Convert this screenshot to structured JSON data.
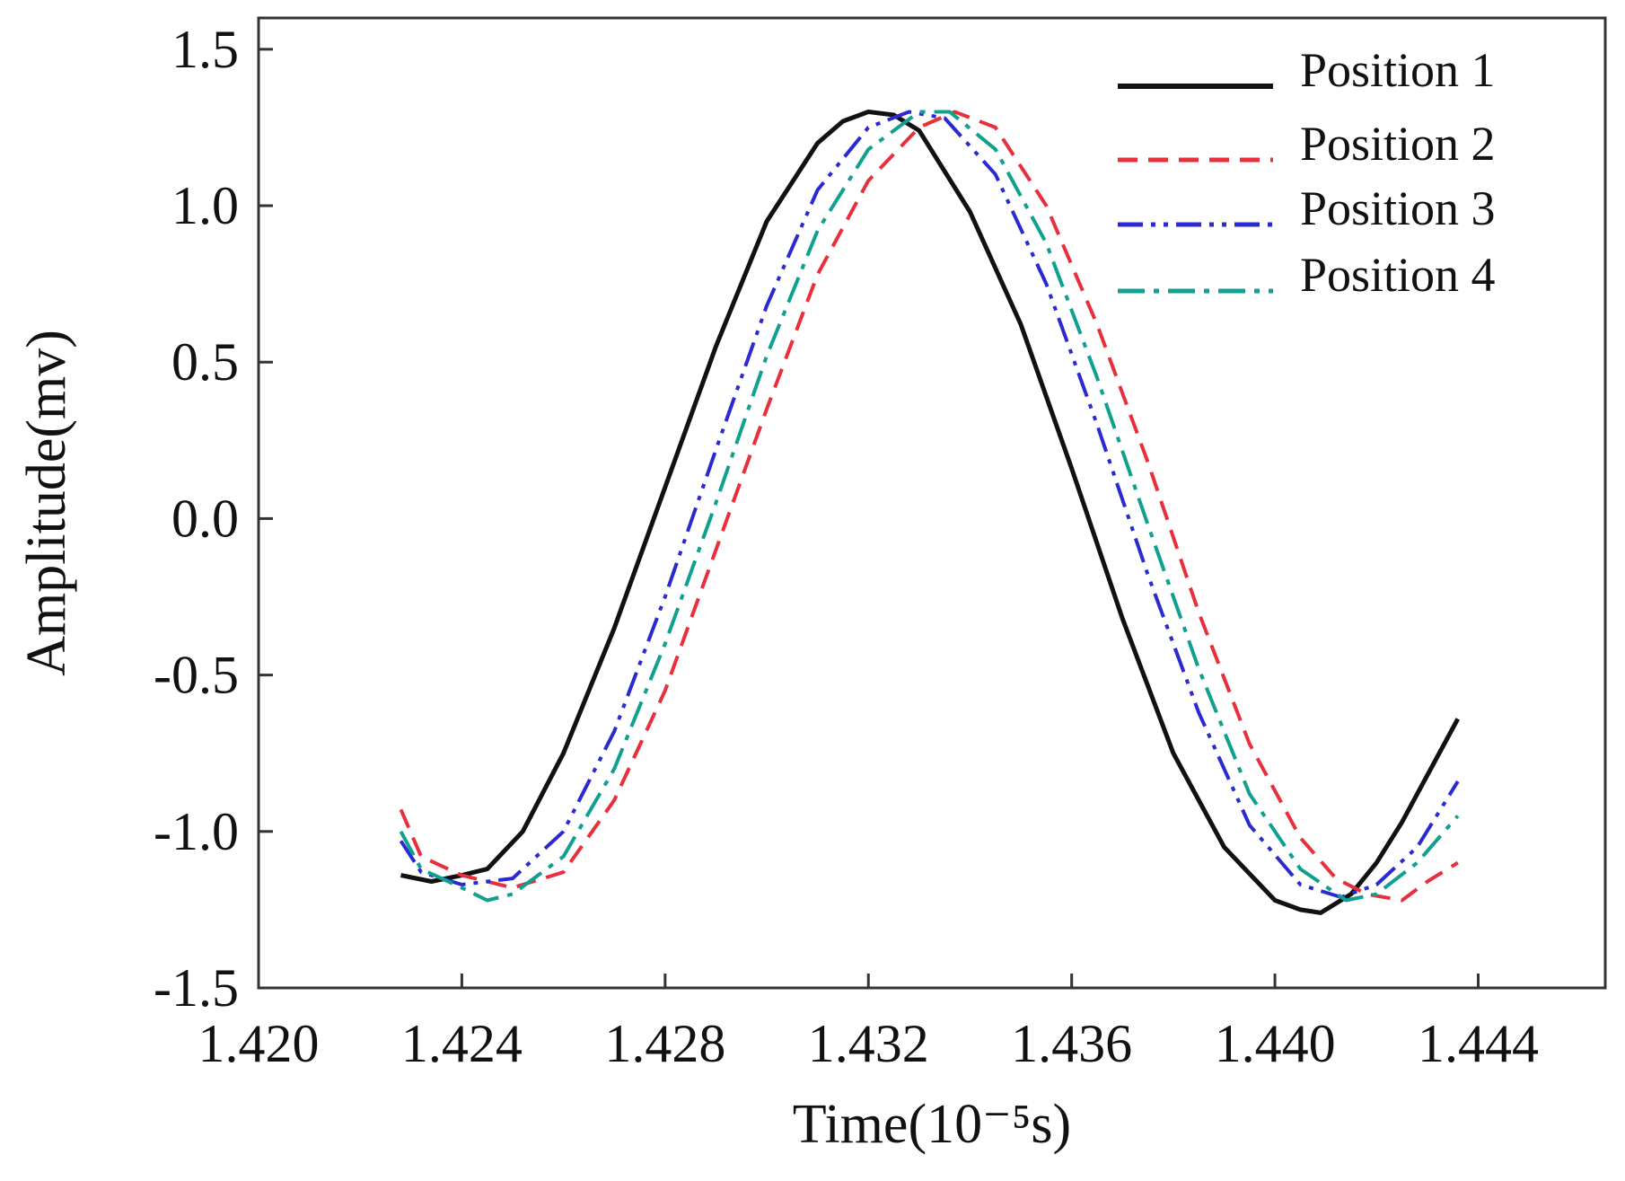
{
  "chart_data": {
    "type": "line",
    "title": "",
    "xlabel": "Time(10⁻⁵s)",
    "ylabel": "Amplitude(mv)",
    "xlim": [
      1.42,
      1.4465
    ],
    "ylim": [
      -1.5,
      1.6
    ],
    "xticks": [
      1.42,
      1.424,
      1.428,
      1.432,
      1.436,
      1.44,
      1.444
    ],
    "xtick_labels": [
      "1.420",
      "1.424",
      "1.428",
      "1.432",
      "1.436",
      "1.440",
      "1.444"
    ],
    "yticks": [
      1.5,
      1.0,
      0.5,
      0.0,
      -0.5,
      -1.0,
      -1.5
    ],
    "ytick_labels": [
      "1.5",
      "1.0",
      "0.5",
      "0.0",
      "-0.5",
      "-1.0",
      "-1.5"
    ],
    "grid": false,
    "legend_position": "top-right",
    "series": [
      {
        "name": "Position 1",
        "color": "#111111",
        "dash": "solid",
        "x": [
          1.4228,
          1.4234,
          1.424,
          1.4245,
          1.4252,
          1.426,
          1.427,
          1.428,
          1.429,
          1.43,
          1.431,
          1.4315,
          1.432,
          1.4325,
          1.433,
          1.434,
          1.435,
          1.436,
          1.437,
          1.438,
          1.439,
          1.44,
          1.4405,
          1.4409,
          1.4415,
          1.442,
          1.4425,
          1.443,
          1.4436
        ],
        "y": [
          -1.14,
          -1.16,
          -1.14,
          -1.12,
          -1.0,
          -0.75,
          -0.35,
          0.1,
          0.55,
          0.95,
          1.2,
          1.27,
          1.3,
          1.29,
          1.24,
          0.98,
          0.62,
          0.16,
          -0.32,
          -0.75,
          -1.05,
          -1.22,
          -1.25,
          -1.26,
          -1.2,
          -1.1,
          -0.97,
          -0.82,
          -0.64
        ]
      },
      {
        "name": "Position 2",
        "color": "#e8303c",
        "dash": "dashed",
        "x": [
          1.4228,
          1.4232,
          1.424,
          1.425,
          1.426,
          1.427,
          1.428,
          1.429,
          1.43,
          1.431,
          1.432,
          1.433,
          1.4337,
          1.4345,
          1.4355,
          1.4365,
          1.4375,
          1.4385,
          1.4395,
          1.4405,
          1.4412,
          1.4418,
          1.4425,
          1.443,
          1.4436
        ],
        "y": [
          -0.93,
          -1.08,
          -1.14,
          -1.18,
          -1.13,
          -0.9,
          -0.55,
          -0.1,
          0.35,
          0.78,
          1.08,
          1.25,
          1.3,
          1.25,
          1.0,
          0.62,
          0.18,
          -0.3,
          -0.72,
          -1.02,
          -1.15,
          -1.2,
          -1.22,
          -1.16,
          -1.1
        ]
      },
      {
        "name": "Position 3",
        "color": "#2a2ad0",
        "dash": "dash-dot-dot",
        "x": [
          1.4228,
          1.4232,
          1.424,
          1.425,
          1.426,
          1.427,
          1.428,
          1.429,
          1.43,
          1.431,
          1.432,
          1.4328,
          1.4335,
          1.4345,
          1.4355,
          1.4365,
          1.4375,
          1.4385,
          1.4395,
          1.4405,
          1.4413,
          1.442,
          1.4428,
          1.4436
        ],
        "y": [
          -1.03,
          -1.13,
          -1.17,
          -1.15,
          -1.0,
          -0.68,
          -0.25,
          0.22,
          0.68,
          1.05,
          1.25,
          1.3,
          1.28,
          1.1,
          0.75,
          0.3,
          -0.18,
          -0.62,
          -0.98,
          -1.17,
          -1.21,
          -1.17,
          -1.05,
          -0.84
        ]
      },
      {
        "name": "Position 4",
        "color": "#10a090",
        "dash": "dash-dot",
        "x": [
          1.4228,
          1.4232,
          1.424,
          1.4245,
          1.425,
          1.426,
          1.427,
          1.428,
          1.429,
          1.43,
          1.431,
          1.432,
          1.433,
          1.4336,
          1.4345,
          1.4355,
          1.4365,
          1.4375,
          1.4385,
          1.4395,
          1.4405,
          1.4414,
          1.442,
          1.4428,
          1.4436
        ],
        "y": [
          -1.0,
          -1.12,
          -1.18,
          -1.22,
          -1.2,
          -1.08,
          -0.8,
          -0.4,
          0.05,
          0.52,
          0.92,
          1.18,
          1.3,
          1.3,
          1.18,
          0.88,
          0.45,
          -0.02,
          -0.48,
          -0.88,
          -1.12,
          -1.22,
          -1.2,
          -1.1,
          -0.95
        ]
      }
    ]
  }
}
